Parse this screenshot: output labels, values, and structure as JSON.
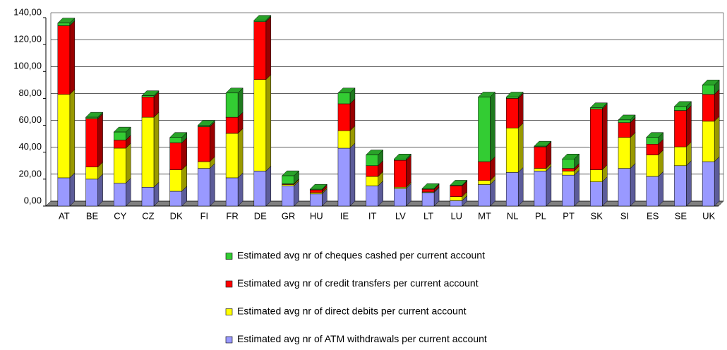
{
  "chart_data": {
    "type": "bar3d_stacked",
    "categories": [
      "AT",
      "BE",
      "CY",
      "CZ",
      "DK",
      "FI",
      "FR",
      "DE",
      "GR",
      "HU",
      "IE",
      "IT",
      "LV",
      "LT",
      "LU",
      "MT",
      "NL",
      "PL",
      "PT",
      "SK",
      "SI",
      "ES",
      "SE",
      "UK"
    ],
    "series": [
      {
        "name": "Estimated avg nr of ATM withdrawals per current account",
        "color": "#9999ff",
        "values": [
          21,
          20,
          17,
          14,
          11,
          28,
          21,
          26,
          15,
          9,
          43,
          15,
          13,
          10,
          4,
          16,
          25,
          26,
          23,
          18,
          28,
          22,
          30,
          33
        ]
      },
      {
        "name": "Estimated avg nr of direct debits per current account",
        "color": "#ffff00",
        "values": [
          62,
          9,
          26,
          52,
          16,
          5,
          33,
          68,
          1,
          1,
          13,
          7,
          1,
          0.5,
          3,
          3,
          33,
          2,
          3,
          9,
          23,
          16,
          14,
          30
        ]
      },
      {
        "name": "Estimated avg nr of credit transfers per current account",
        "color": "#ff0000",
        "values": [
          51,
          36,
          6,
          15,
          20,
          26,
          12,
          43,
          0.5,
          2,
          20,
          8,
          20,
          2,
          8,
          14,
          22,
          16,
          2,
          45,
          11,
          8,
          27,
          20
        ]
      },
      {
        "name": "Estimated avg nr of cheques cashed per current account",
        "color": "#33cc33",
        "values": [
          2,
          1,
          6,
          1,
          4,
          1,
          18,
          1,
          6,
          0.5,
          8,
          8,
          1,
          0.5,
          0.5,
          48,
          1,
          0.5,
          7,
          1,
          2,
          5,
          3,
          7
        ]
      }
    ],
    "ylim": [
      0,
      140
    ],
    "yticks": [
      {
        "value": 0,
        "label": "0,00"
      },
      {
        "value": 20,
        "label": "20,00"
      },
      {
        "value": 40,
        "label": "40,00"
      },
      {
        "value": 60,
        "label": "60,00"
      },
      {
        "value": 80,
        "label": "80,00"
      },
      {
        "value": 100,
        "label": "100,00"
      },
      {
        "value": 120,
        "label": "120,00"
      },
      {
        "value": 140,
        "label": "140,00"
      }
    ],
    "grid": true
  }
}
